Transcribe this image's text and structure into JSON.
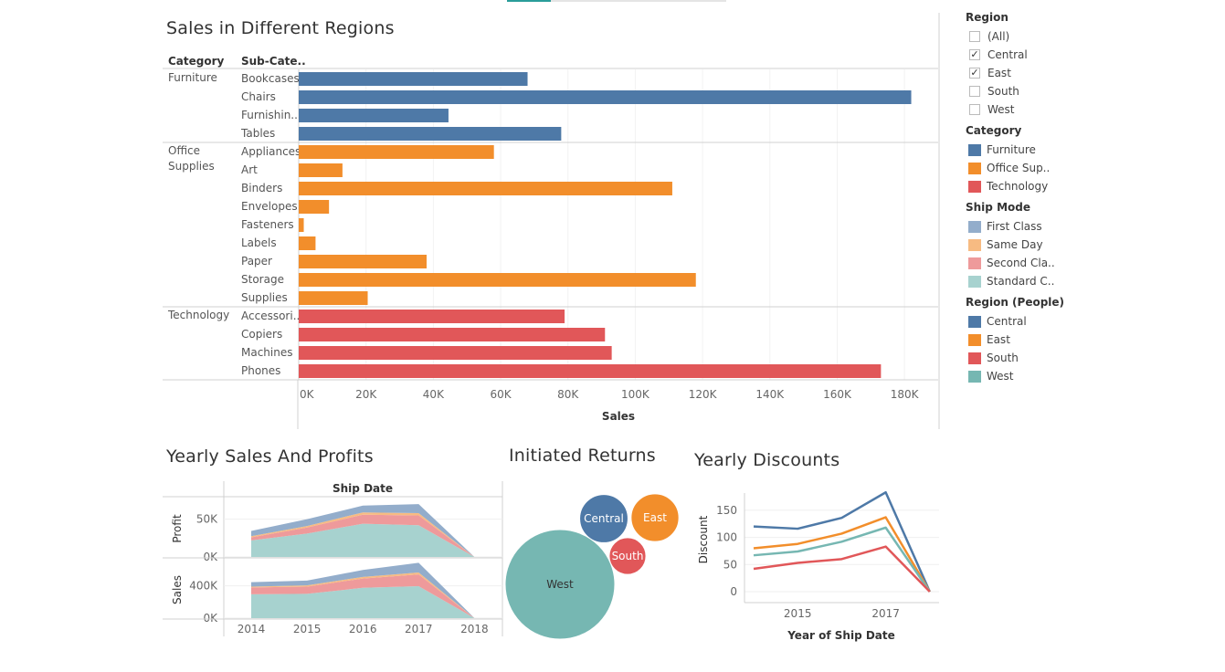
{
  "titles": {
    "main": "Sales in Different Regions",
    "area": "Yearly Sales And Profits",
    "bubble": "Initiated Returns",
    "line": "Yearly Discounts"
  },
  "legend": {
    "region": {
      "title": "Region",
      "items": [
        {
          "label": "(All)",
          "checked": false
        },
        {
          "label": "Central",
          "checked": true
        },
        {
          "label": "East",
          "checked": true
        },
        {
          "label": "South",
          "checked": false
        },
        {
          "label": "West",
          "checked": false
        }
      ]
    },
    "category": {
      "title": "Category",
      "items": [
        {
          "label": "Furniture",
          "color": "#4e79a7"
        },
        {
          "label": "Office Sup..",
          "color": "#f28e2b"
        },
        {
          "label": "Technology",
          "color": "#e15759"
        }
      ]
    },
    "ship_mode": {
      "title": "Ship Mode",
      "items": [
        {
          "label": "First Class",
          "color": "#93adcb"
        },
        {
          "label": "Same Day",
          "color": "#f7bb82"
        },
        {
          "label": "Second Cla..",
          "color": "#ee9a9b"
        },
        {
          "label": "Standard C..",
          "color": "#a7d2cf"
        }
      ]
    },
    "region_people": {
      "title": "Region (People)",
      "items": [
        {
          "label": "Central",
          "color": "#4e79a7"
        },
        {
          "label": "East",
          "color": "#f28e2b"
        },
        {
          "label": "South",
          "color": "#e15759"
        },
        {
          "label": "West",
          "color": "#76b7b2"
        }
      ]
    }
  },
  "chart_data": [
    {
      "type": "bar",
      "orientation": "horizontal",
      "title": "Sales in Different Regions",
      "column_headers": [
        "Category",
        "Sub-Cate.."
      ],
      "xlabel": "Sales",
      "xlim": [
        0,
        190000
      ],
      "xticks": [
        0,
        20000,
        40000,
        60000,
        80000,
        100000,
        120000,
        140000,
        160000,
        180000
      ],
      "xtick_labels": [
        "0K",
        "20K",
        "40K",
        "60K",
        "80K",
        "100K",
        "120K",
        "140K",
        "160K",
        "180K"
      ],
      "grid": true,
      "groups": [
        {
          "category": "Furniture",
          "color": "#4e79a7",
          "items": [
            {
              "label": "Bookcases",
              "value": 68000
            },
            {
              "label": "Chairs",
              "value": 182000
            },
            {
              "label": "Furnishin..",
              "value": 44500
            },
            {
              "label": "Tables",
              "value": 78000
            }
          ]
        },
        {
          "category": "Office Supplies",
          "color": "#f28e2b",
          "items": [
            {
              "label": "Appliances",
              "value": 58000
            },
            {
              "label": "Art",
              "value": 13000
            },
            {
              "label": "Binders",
              "value": 111000
            },
            {
              "label": "Envelopes",
              "value": 9000
            },
            {
              "label": "Fasteners",
              "value": 1500
            },
            {
              "label": "Labels",
              "value": 5000
            },
            {
              "label": "Paper",
              "value": 38000
            },
            {
              "label": "Storage",
              "value": 118000
            },
            {
              "label": "Supplies",
              "value": 20500
            }
          ]
        },
        {
          "category": "Technology",
          "color": "#e15759",
          "items": [
            {
              "label": "Accessori..",
              "value": 79000
            },
            {
              "label": "Copiers",
              "value": 91000
            },
            {
              "label": "Machines",
              "value": 93000
            },
            {
              "label": "Phones",
              "value": 173000
            }
          ]
        }
      ]
    },
    {
      "type": "area",
      "stacked": true,
      "title": "Yearly Sales And Profits",
      "column_header": "Ship Date",
      "x": [
        2014,
        2015,
        2016,
        2017,
        2018
      ],
      "xtick_labels": [
        "2014",
        "2015",
        "2016",
        "2017",
        "2018"
      ],
      "panels": [
        {
          "ylabel": "Profit",
          "ytick_labels": [
            "0K",
            "50K"
          ],
          "yticks": [
            0,
            50000
          ],
          "ylim": [
            0,
            75000
          ],
          "series": [
            {
              "name": "Standard C..",
              "color": "#a7d2cf",
              "values": [
                22000,
                31000,
                44000,
                42000,
                0
              ]
            },
            {
              "name": "Second Cla..",
              "color": "#ee9a9b",
              "values": [
                4000,
                8000,
                12000,
                13000,
                0
              ]
            },
            {
              "name": "Same Day",
              "color": "#f7bb82",
              "values": [
                1500,
                2000,
                3000,
                3000,
                0
              ]
            },
            {
              "name": "First Class",
              "color": "#93adcb",
              "values": [
                7000,
                9000,
                9000,
                12000,
                0
              ]
            }
          ]
        },
        {
          "ylabel": "Sales",
          "ytick_labels": [
            "0K",
            "400K"
          ],
          "yticks": [
            0,
            400000
          ],
          "ylim": [
            0,
            700000
          ],
          "series": [
            {
              "name": "Standard C..",
              "color": "#a7d2cf",
              "values": [
                295000,
                300000,
                375000,
                395000,
                0
              ]
            },
            {
              "name": "Second Cla..",
              "color": "#ee9a9b",
              "values": [
                85000,
                90000,
                115000,
                145000,
                0
              ]
            },
            {
              "name": "Same Day",
              "color": "#f7bb82",
              "values": [
                10000,
                15000,
                20000,
                25000,
                0
              ]
            },
            {
              "name": "First Class",
              "color": "#93adcb",
              "values": [
                55000,
                60000,
                85000,
                120000,
                0
              ]
            }
          ]
        }
      ]
    },
    {
      "type": "bubble",
      "title": "Initiated Returns",
      "values": [
        {
          "label": "West",
          "value": 1000,
          "color": "#76b7b2"
        },
        {
          "label": "Central",
          "value": 194,
          "color": "#4e79a7"
        },
        {
          "label": "East",
          "value": 190,
          "color": "#f28e2b"
        },
        {
          "label": "South",
          "value": 112,
          "color": "#e15759"
        }
      ]
    },
    {
      "type": "line",
      "title": "Yearly Discounts",
      "xlabel": "Year of Ship Date",
      "ylabel": "Discount",
      "x": [
        2014,
        2015,
        2016,
        2017,
        2018
      ],
      "xtick_labels": {
        "2015": "2015",
        "2017": "2017"
      },
      "yticks": [
        0,
        50,
        100,
        150
      ],
      "ylim": [
        0,
        175
      ],
      "grid": true,
      "series": [
        {
          "name": "Central",
          "color": "#4e79a7",
          "values": [
            120,
            116,
            136,
            183,
            0
          ]
        },
        {
          "name": "East",
          "color": "#f28e2b",
          "values": [
            80,
            88,
            107,
            137,
            0
          ]
        },
        {
          "name": "West",
          "color": "#76b7b2",
          "values": [
            67,
            74,
            92,
            118,
            0
          ]
        },
        {
          "name": "South",
          "color": "#e15759",
          "values": [
            42,
            53,
            60,
            83,
            0
          ]
        }
      ]
    }
  ]
}
